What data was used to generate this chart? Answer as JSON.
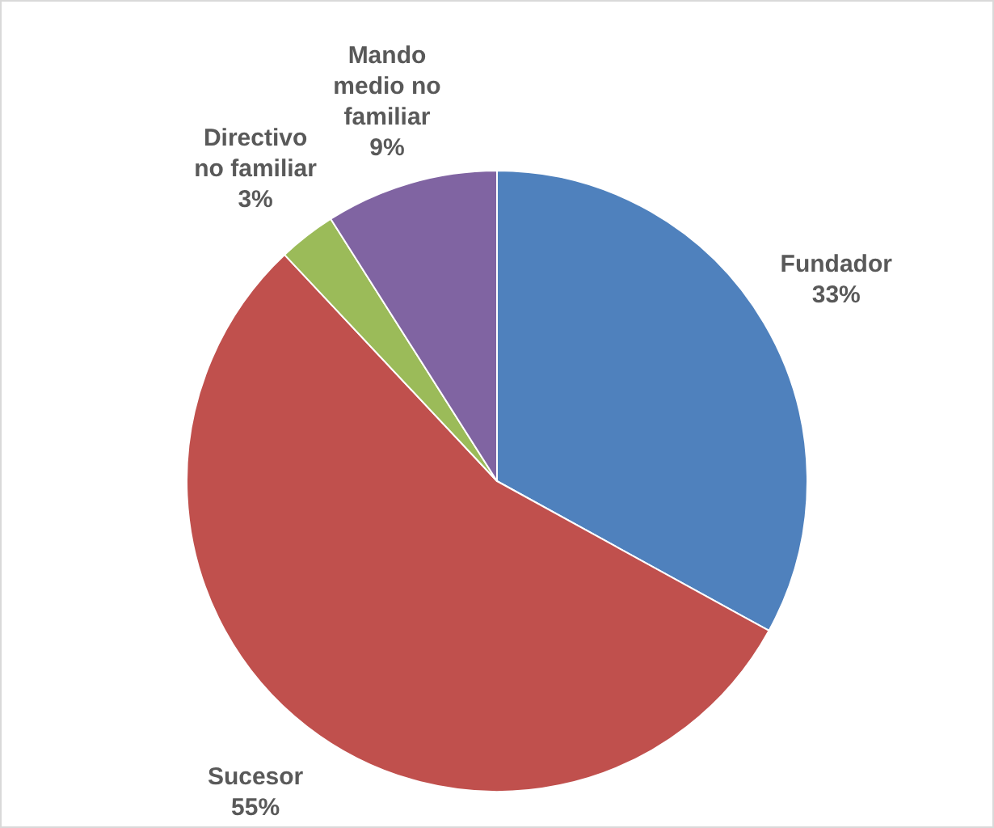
{
  "chart_data": {
    "type": "pie",
    "categories": [
      "Fundador",
      "Sucesor",
      "Directivo no familiar",
      "Mando medio no familiar"
    ],
    "values": [
      33,
      55,
      3,
      9
    ],
    "colors": [
      "#4f81bd",
      "#c0504d",
      "#9bbb59",
      "#8064a2"
    ],
    "value_labels": [
      "33%",
      "55%",
      "3%",
      "9%"
    ],
    "legend": false
  }
}
